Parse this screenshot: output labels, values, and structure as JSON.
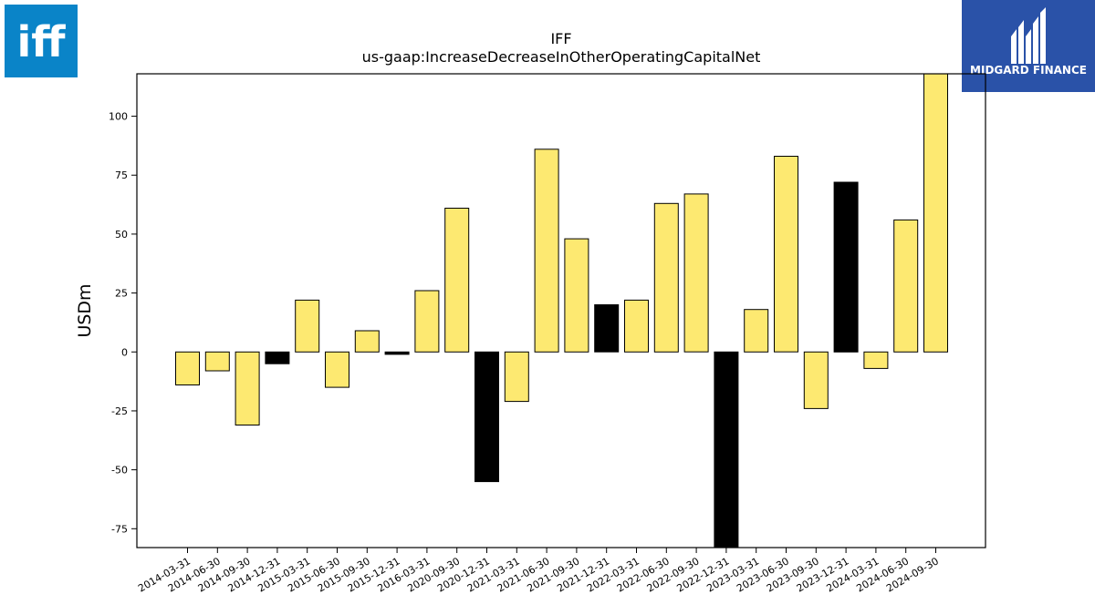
{
  "logos": {
    "left_text": "iff",
    "left_color": "#0a84c8",
    "right_text": "MIDGARD FINANCE",
    "right_color": "#2a52a8"
  },
  "colors": {
    "positive_bar": "#fde971",
    "highlight_bar": "#000000",
    "bar_edge": "#000000"
  },
  "chart_data": {
    "type": "bar",
    "title": "IFF",
    "subtitle": "us-gaap:IncreaseDecreaseInOtherOperatingCapitalNet",
    "xlabel": "",
    "ylabel": "USDm",
    "ylim": [
      -83,
      118
    ],
    "yticks": [
      -75,
      -50,
      -25,
      0,
      25,
      50,
      75,
      100
    ],
    "grid": false,
    "categories": [
      "2014-03-31",
      "2014-06-30",
      "2014-09-30",
      "2014-12-31",
      "2015-03-31",
      "2015-06-30",
      "2015-09-30",
      "2015-12-31",
      "2016-03-31",
      "2020-09-30",
      "2020-12-31",
      "2021-03-31",
      "2021-06-30",
      "2021-09-30",
      "2021-12-31",
      "2022-03-31",
      "2022-06-30",
      "2022-09-30",
      "2022-12-31",
      "2023-03-31",
      "2023-06-30",
      "2023-09-30",
      "2023-12-31",
      "2024-03-31",
      "2024-06-30",
      "2024-09-30"
    ],
    "values": [
      -14,
      -8,
      -31,
      -5,
      22,
      -15,
      9,
      -1,
      26,
      61,
      -55,
      -21,
      86,
      48,
      20,
      22,
      63,
      67,
      -83,
      18,
      83,
      -24,
      72,
      -7,
      56,
      118
    ],
    "highlighted": [
      false,
      false,
      false,
      true,
      false,
      false,
      false,
      true,
      false,
      false,
      true,
      false,
      false,
      false,
      true,
      false,
      false,
      false,
      true,
      false,
      false,
      false,
      true,
      false,
      false,
      false
    ]
  }
}
